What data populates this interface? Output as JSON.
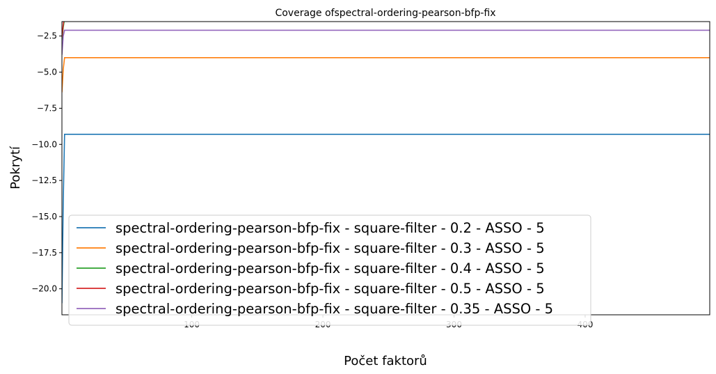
{
  "chart_data": {
    "type": "line",
    "title": "Coverage ofspectral-ordering-pearson-bfp-fix",
    "xlabel": "Počet faktorů",
    "ylabel": "Pokrytí",
    "xlim": [
      1,
      495
    ],
    "ylim": [
      -21.8,
      -1.5
    ],
    "xticks": [
      100,
      200,
      300,
      400
    ],
    "yticks": [
      -2.5,
      -5.0,
      -7.5,
      -10.0,
      -12.5,
      -15.0,
      -17.5,
      -20.0
    ],
    "xtick_labels": [
      "100",
      "200",
      "300",
      "400"
    ],
    "ytick_labels": [
      "−2.5",
      "−5.0",
      "−7.5",
      "−10.0",
      "−12.5",
      "−15.0",
      "−17.5",
      "−20.0"
    ],
    "legend_placement": "lower-left",
    "grid": false,
    "series": [
      {
        "name": "spectral-ordering-pearson-bfp-fix - square-filter - 0.2 - ASSO - 5",
        "color": "#1f77b4",
        "x": [
          1,
          2,
          3,
          495
        ],
        "y": [
          -21.0,
          -14.0,
          -9.3,
          -9.3
        ]
      },
      {
        "name": "spectral-ordering-pearson-bfp-fix - square-filter - 0.3 - ASSO - 5",
        "color": "#ff7f0e",
        "x": [
          1,
          2,
          3,
          495
        ],
        "y": [
          -6.4,
          -4.8,
          -4.0,
          -4.0
        ]
      },
      {
        "name": "spectral-ordering-pearson-bfp-fix - square-filter - 0.4 - ASSO - 5",
        "color": "#2ca02c",
        "x": [
          1,
          2,
          3,
          495
        ],
        "y": [
          -2.8,
          -1.9,
          -1.3,
          -1.3
        ]
      },
      {
        "name": "spectral-ordering-pearson-bfp-fix - square-filter - 0.5 - ASSO - 5",
        "color": "#d62728",
        "x": [
          1,
          2,
          3,
          495
        ],
        "y": [
          -2.6,
          -1.7,
          -1.1,
          -1.1
        ]
      },
      {
        "name": "spectral-ordering-pearson-bfp-fix - square-filter - 0.35 - ASSO - 5",
        "color": "#9467bd",
        "x": [
          1,
          2,
          3,
          495
        ],
        "y": [
          -3.8,
          -2.5,
          -2.1,
          -2.1
        ]
      }
    ]
  }
}
